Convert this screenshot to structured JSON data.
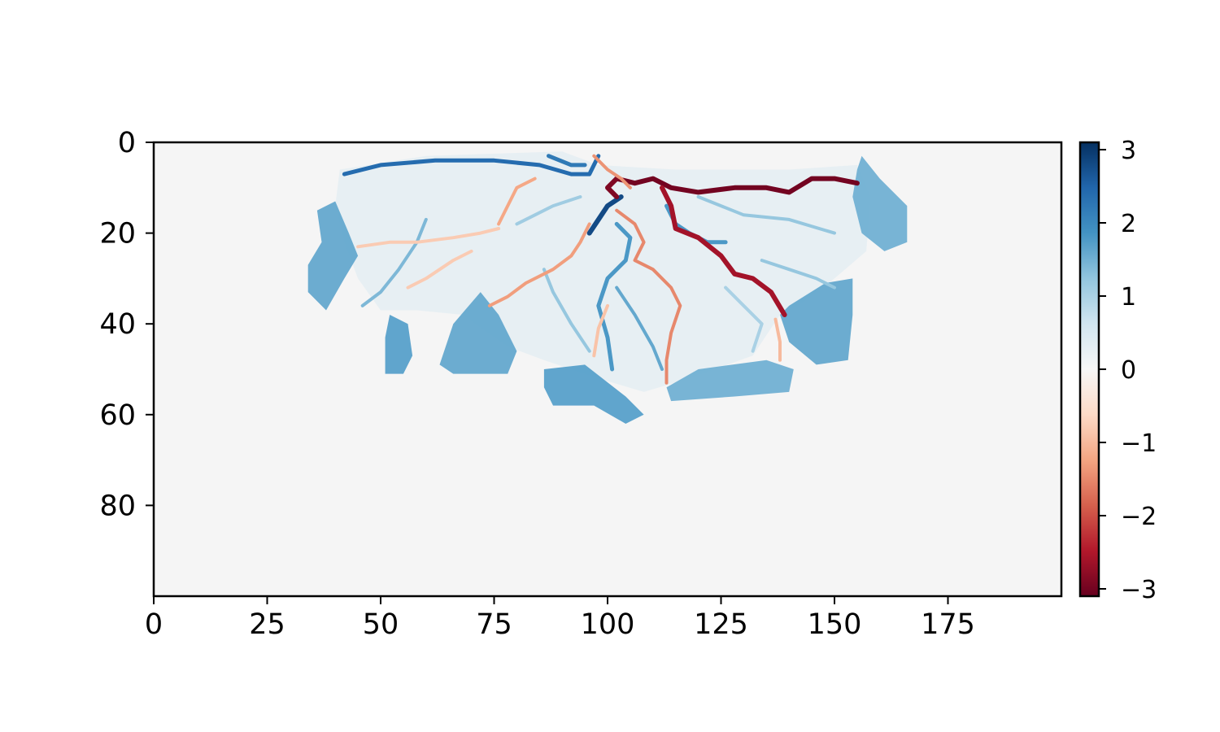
{
  "chart_data": {
    "type": "heatmap",
    "title": "",
    "xlabel": "",
    "ylabel": "",
    "xlim": [
      0,
      200
    ],
    "ylim": [
      100,
      0
    ],
    "x_ticks": [
      0,
      25,
      50,
      75,
      100,
      125,
      150,
      175
    ],
    "y_ticks": [
      0,
      20,
      40,
      60,
      80
    ],
    "x_tick_labels": [
      "0",
      "25",
      "50",
      "75",
      "100",
      "125",
      "150",
      "175"
    ],
    "y_tick_labels": [
      "0",
      "20",
      "40",
      "60",
      "80"
    ],
    "colormap": "RdBu",
    "background_color": "#f5f5f5",
    "colorbar": {
      "range": [
        -3.1,
        3.1
      ],
      "ticks": [
        3,
        2,
        1,
        0,
        -1,
        -2,
        -3
      ],
      "tick_labels": [
        "3",
        "2",
        "1",
        "0",
        "−1",
        "−2",
        "−3"
      ],
      "placement": "right"
    },
    "regions": [
      {
        "value": 1.6,
        "polygon": [
          [
            36,
            15
          ],
          [
            40,
            13
          ],
          [
            43,
            20
          ],
          [
            45,
            25
          ],
          [
            42,
            30
          ],
          [
            38,
            37
          ],
          [
            34,
            33
          ],
          [
            34,
            27
          ],
          [
            37,
            22
          ]
        ]
      },
      {
        "value": 1.7,
        "polygon": [
          [
            52,
            38
          ],
          [
            56,
            40
          ],
          [
            57,
            47
          ],
          [
            55,
            51
          ],
          [
            51,
            51
          ],
          [
            51,
            43
          ]
        ]
      },
      {
        "value": 1.6,
        "polygon": [
          [
            66,
            40
          ],
          [
            72,
            33
          ],
          [
            76,
            38
          ],
          [
            80,
            46
          ],
          [
            78,
            51
          ],
          [
            66,
            51
          ],
          [
            63,
            49
          ]
        ]
      },
      {
        "value": 1.7,
        "polygon": [
          [
            86,
            50
          ],
          [
            95,
            49
          ],
          [
            104,
            56
          ],
          [
            108,
            60
          ],
          [
            104,
            62
          ],
          [
            97,
            58
          ],
          [
            88,
            58
          ],
          [
            86,
            54
          ]
        ]
      },
      {
        "value": 1.5,
        "polygon": [
          [
            113,
            54
          ],
          [
            120,
            50
          ],
          [
            135,
            48
          ],
          [
            141,
            50
          ],
          [
            140,
            55
          ],
          [
            128,
            56
          ],
          [
            114,
            57
          ]
        ]
      },
      {
        "value": 1.6,
        "polygon": [
          [
            140,
            36
          ],
          [
            148,
            31
          ],
          [
            154,
            30
          ],
          [
            154,
            38
          ],
          [
            153,
            48
          ],
          [
            146,
            49
          ],
          [
            140,
            44
          ],
          [
            138,
            38
          ]
        ]
      },
      {
        "value": 1.5,
        "polygon": [
          [
            155,
            6
          ],
          [
            156,
            3
          ],
          [
            160,
            8
          ],
          [
            166,
            14
          ],
          [
            166,
            22
          ],
          [
            161,
            24
          ],
          [
            156,
            20
          ],
          [
            154,
            12
          ]
        ]
      },
      {
        "value": 0.5,
        "polygon": [
          [
            41,
            6
          ],
          [
            60,
            3
          ],
          [
            90,
            2
          ],
          [
            98,
            5
          ],
          [
            115,
            6
          ],
          [
            140,
            6
          ],
          [
            155,
            5
          ],
          [
            158,
            12
          ],
          [
            157,
            24
          ],
          [
            150,
            30
          ],
          [
            142,
            36
          ],
          [
            138,
            38
          ],
          [
            132,
            47
          ],
          [
            118,
            52
          ],
          [
            108,
            55
          ],
          [
            98,
            52
          ],
          [
            86,
            48
          ],
          [
            78,
            45
          ],
          [
            68,
            38
          ],
          [
            58,
            37
          ],
          [
            50,
            37
          ],
          [
            45,
            30
          ],
          [
            42,
            22
          ],
          [
            40,
            14
          ]
        ]
      }
    ],
    "channels": [
      {
        "value": 2.4,
        "points": [
          [
            42,
            7
          ],
          [
            50,
            5
          ],
          [
            62,
            4
          ],
          [
            75,
            4
          ],
          [
            85,
            5
          ],
          [
            92,
            7
          ],
          [
            96,
            7
          ],
          [
            98,
            3
          ]
        ]
      },
      {
        "value": 2.2,
        "points": [
          [
            87,
            3
          ],
          [
            92,
            5
          ],
          [
            95,
            5
          ]
        ]
      },
      {
        "value": 2.8,
        "points": [
          [
            103,
            12
          ],
          [
            100,
            14
          ],
          [
            98,
            17
          ],
          [
            96,
            20
          ]
        ]
      },
      {
        "value": 1.8,
        "points": [
          [
            102,
            18
          ],
          [
            105,
            21
          ],
          [
            104,
            26
          ],
          [
            100,
            30
          ],
          [
            98,
            36
          ],
          [
            100,
            43
          ],
          [
            101,
            50
          ]
        ]
      },
      {
        "value": 1.6,
        "points": [
          [
            102,
            32
          ],
          [
            106,
            38
          ],
          [
            110,
            45
          ],
          [
            112,
            50
          ]
        ]
      },
      {
        "value": 1.8,
        "points": [
          [
            113,
            14
          ],
          [
            115,
            18
          ],
          [
            118,
            20
          ],
          [
            122,
            22
          ],
          [
            126,
            22
          ]
        ]
      },
      {
        "value": 1.2,
        "points": [
          [
            134,
            26
          ],
          [
            140,
            28
          ],
          [
            146,
            30
          ],
          [
            150,
            32
          ]
        ]
      },
      {
        "value": 1.4,
        "points": [
          [
            60,
            17
          ],
          [
            58,
            22
          ],
          [
            54,
            28
          ],
          [
            50,
            33
          ],
          [
            46,
            36
          ]
        ]
      },
      {
        "value": 1.2,
        "points": [
          [
            120,
            12
          ],
          [
            130,
            16
          ],
          [
            140,
            17
          ],
          [
            150,
            20
          ]
        ]
      },
      {
        "value": 1.2,
        "points": [
          [
            86,
            28
          ],
          [
            88,
            33
          ],
          [
            92,
            40
          ],
          [
            96,
            46
          ]
        ]
      },
      {
        "value": -3.0,
        "points": [
          [
            102,
            8
          ],
          [
            106,
            9
          ],
          [
            110,
            8
          ],
          [
            114,
            10
          ],
          [
            120,
            11
          ],
          [
            128,
            10
          ],
          [
            135,
            10
          ],
          [
            140,
            11
          ],
          [
            145,
            8
          ],
          [
            150,
            8
          ],
          [
            155,
            9
          ]
        ]
      },
      {
        "value": -2.9,
        "points": [
          [
            102,
            8
          ],
          [
            100,
            10
          ],
          [
            102,
            12
          ]
        ]
      },
      {
        "value": -2.6,
        "points": [
          [
            112,
            10
          ],
          [
            114,
            14
          ],
          [
            115,
            19
          ],
          [
            120,
            21
          ],
          [
            125,
            25
          ],
          [
            128,
            29
          ],
          [
            132,
            30
          ],
          [
            136,
            33
          ],
          [
            139,
            38
          ]
        ]
      },
      {
        "value": -1.4,
        "points": [
          [
            97,
            3
          ],
          [
            100,
            6
          ],
          [
            103,
            8
          ],
          [
            105,
            10
          ]
        ]
      },
      {
        "value": -1.5,
        "points": [
          [
            102,
            15
          ],
          [
            106,
            18
          ],
          [
            108,
            22
          ],
          [
            106,
            26
          ],
          [
            110,
            28
          ],
          [
            114,
            32
          ],
          [
            116,
            36
          ],
          [
            114,
            42
          ],
          [
            113,
            48
          ],
          [
            113,
            53
          ]
        ]
      },
      {
        "value": -1.2,
        "points": [
          [
            84,
            8
          ],
          [
            80,
            10
          ],
          [
            78,
            14
          ],
          [
            76,
            18
          ]
        ]
      },
      {
        "value": -1.3,
        "points": [
          [
            96,
            18
          ],
          [
            94,
            22
          ],
          [
            92,
            25
          ],
          [
            88,
            28
          ],
          [
            82,
            31
          ],
          [
            78,
            34
          ],
          [
            74,
            36
          ]
        ]
      },
      {
        "value": -0.9,
        "points": [
          [
            100,
            36
          ],
          [
            98,
            41
          ],
          [
            97,
            47
          ]
        ]
      },
      {
        "value": -1.0,
        "points": [
          [
            137,
            39
          ],
          [
            138,
            44
          ],
          [
            138,
            48
          ]
        ]
      },
      {
        "value": -0.8,
        "points": [
          [
            45,
            23
          ],
          [
            52,
            22
          ],
          [
            58,
            22
          ],
          [
            66,
            21
          ],
          [
            72,
            20
          ],
          [
            76,
            19
          ]
        ]
      },
      {
        "value": -0.8,
        "points": [
          [
            56,
            32
          ],
          [
            60,
            30
          ],
          [
            66,
            26
          ],
          [
            70,
            24
          ]
        ]
      },
      {
        "value": 1.0,
        "points": [
          [
            126,
            32
          ],
          [
            130,
            36
          ],
          [
            134,
            40
          ],
          [
            132,
            46
          ]
        ]
      },
      {
        "value": 1.1,
        "points": [
          [
            80,
            18
          ],
          [
            84,
            16
          ],
          [
            88,
            14
          ],
          [
            94,
            12
          ]
        ]
      }
    ]
  }
}
